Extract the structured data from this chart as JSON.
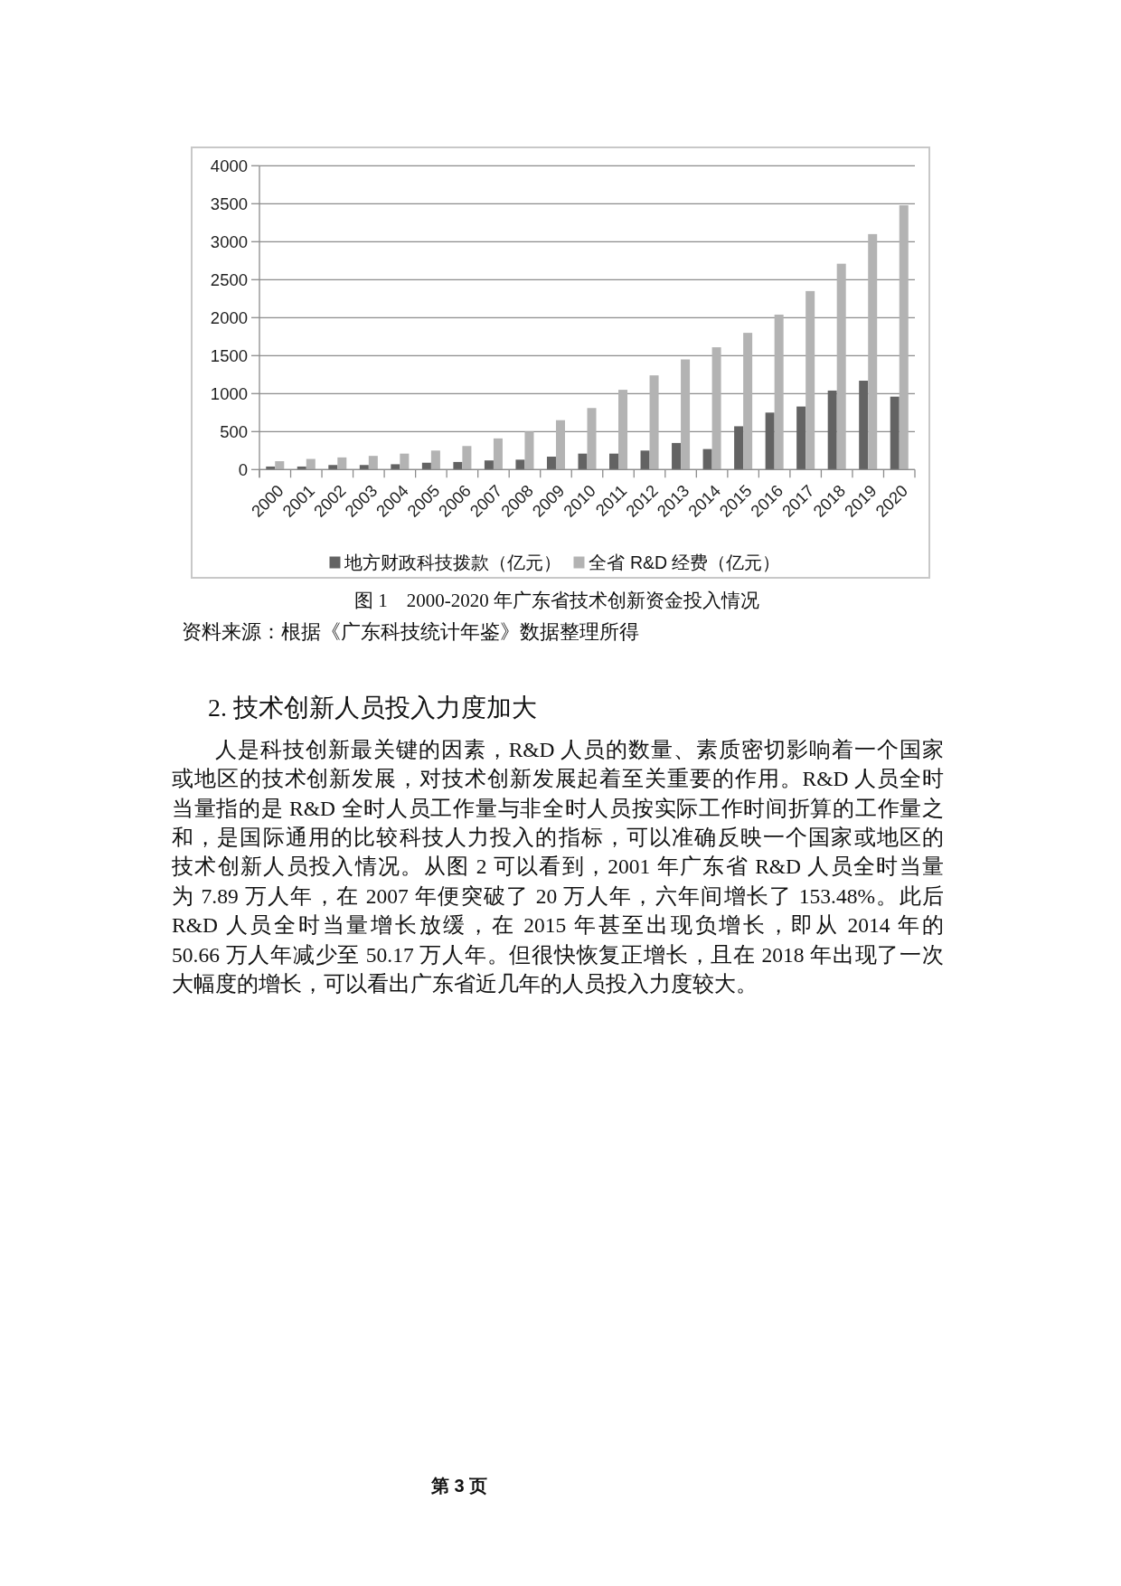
{
  "chart_data": {
    "type": "bar",
    "title": "图 1　2000-2020 年广东省技术创新资金投入情况",
    "categories": [
      "2000",
      "2001",
      "2002",
      "2003",
      "2004",
      "2005",
      "2006",
      "2007",
      "2008",
      "2009",
      "2010",
      "2011",
      "2012",
      "2013",
      "2014",
      "2015",
      "2016",
      "2017",
      "2018",
      "2019",
      "2020"
    ],
    "series": [
      {
        "name": "地方财政科技拨款（亿元）",
        "color": "#636363",
        "values": [
          40,
          40,
          60,
          60,
          70,
          90,
          100,
          120,
          130,
          170,
          210,
          210,
          250,
          350,
          270,
          570,
          750,
          830,
          1040,
          1170,
          960
        ]
      },
      {
        "name": "全省 R&D 经费（亿元）",
        "color": "#b3b3b3",
        "values": [
          110,
          140,
          160,
          180,
          210,
          250,
          310,
          410,
          500,
          650,
          810,
          1050,
          1240,
          1450,
          1610,
          1800,
          2040,
          2350,
          2710,
          3100,
          3480
        ]
      }
    ],
    "ylim": [
      0,
      4000
    ],
    "yticks": [
      0,
      500,
      1000,
      1500,
      2000,
      2500,
      3000,
      3500,
      4000
    ],
    "grid": "y",
    "legend": "bottom",
    "annotations": [
      "资料来源：根据《广东科技统计年鉴》数据整理所得",
      "2. 技术创新人员投入力度加大",
      "人是科技创新最关键的因素，R&D 人员的数量、素质密切影响着一个国家",
      "或地区的技术创新发展，对技术创新发展起着至关重要的作用。R&D 人员全时",
      "当量指的是 R&D 全时人员工作量与非全时人员按实际工作时间折算的工作量之",
      "和，是国际通用的比较科技人力投入的指标，可以准确反映一个国家或地区的",
      "技术创新人员投入情况。从图 2 可以看到，2001 年广东省 R&D 人员全时当量",
      "为 7.89 万人年，在 2007 年便突破了 20 万人年，六年间增长了 153.48%。此后",
      "R&D 人员全时当量增长放缓，在 2015 年甚至出现负增长，即从 2014 年的",
      "50.66 万人年减少至 50.17 万人年。但很快恢复正增长，且在 2018 年出现了一次",
      "大幅度的增长，可以看出广东省近几年的人员投入力度较大。",
      "第 3 页"
    ]
  }
}
